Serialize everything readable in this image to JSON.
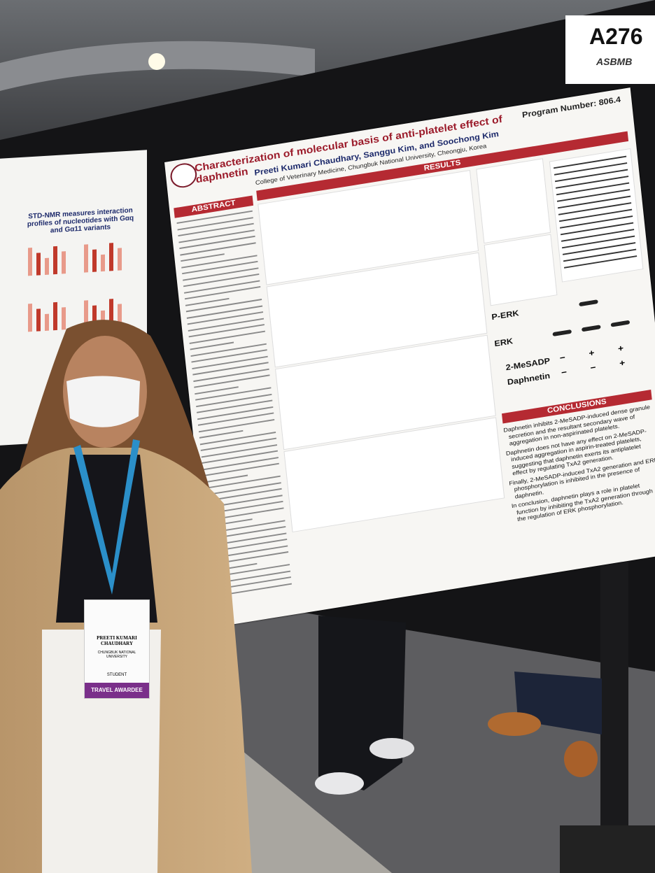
{
  "booth": {
    "number": "A276",
    "org": "ASBMB"
  },
  "left_poster": {
    "title": "STD-NMR measures interaction profiles of nucleotides with Gαq and Gα11 variants"
  },
  "poster": {
    "title": "Characterization of molecular basis of anti-platelet effect of daphnetin",
    "program_number": "Program Number: 806.4",
    "authors": "Preeti Kumari Chaudhary, Sanggu Kim, and Soochong Kim",
    "affiliation": "College of Veterinary Medicine, Chungbuk National University, Cheongju, Korea",
    "sections": {
      "abstract": "ABSTRACT",
      "results": "RESULTS",
      "conclusions": "CONCLUSIONS"
    },
    "blot": {
      "rows": [
        "P-ERK",
        "ERK"
      ],
      "treatments": [
        {
          "label": "2-MeSADP",
          "signs": [
            "−",
            "+",
            "+"
          ]
        },
        {
          "label": "Daphnetin",
          "signs": [
            "−",
            "−",
            "+"
          ]
        }
      ]
    },
    "conclusions": [
      "Daphnetin inhibits 2-MeSADP-induced dense granule secretion and the resultant secondary wave of aggregation in non-aspirinated platelets.",
      "Daphnetin does not have any effect on 2-MeSADP-induced aggregation in aspirin-treated platelets, suggesting that daphnetin exerts its antiplatelet effect by regulating TxA2 generation.",
      "Finally, 2-MeSADP-induced TxA2 generation and ERK phosphorylation is inhibited in the presence of daphnetin.",
      "In conclusion, daphnetin plays a role in platelet function by inhibiting the TxA2 generation through the regulation of ERK phosphorylation."
    ]
  },
  "badge": {
    "name": "PREETI KUMARI CHAUDHARY",
    "affiliation": "CHUNGBUK NATIONAL UNIVERSITY",
    "role": "STUDENT",
    "award": "TRAVEL AWARDEE"
  }
}
